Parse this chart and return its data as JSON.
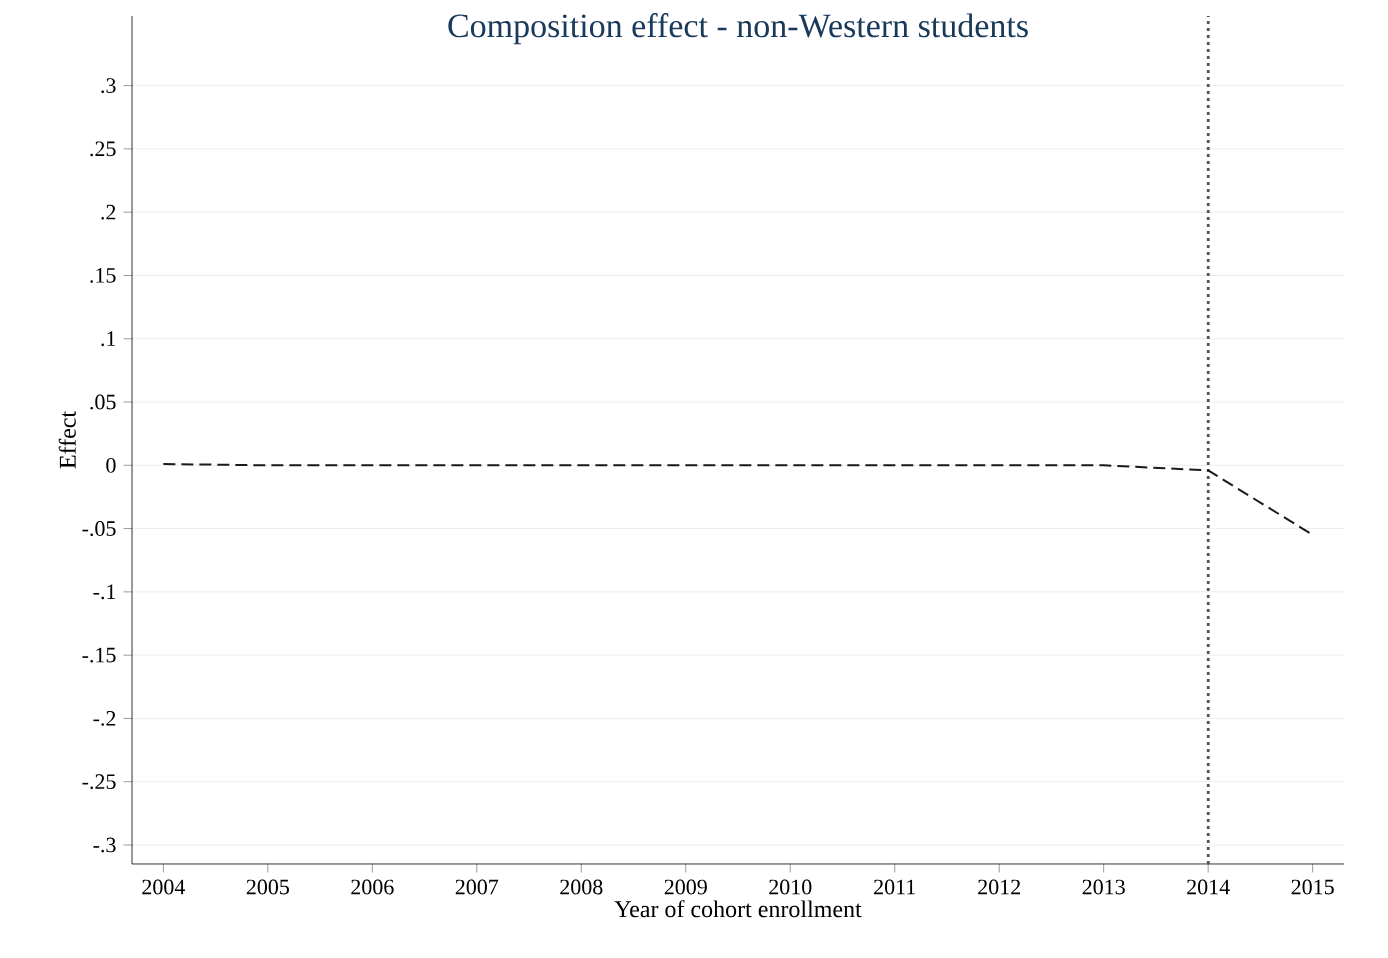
{
  "chart_data": {
    "type": "line",
    "title": "Composition effect - non-Western students",
    "xlabel": "Year of cohort enrollment",
    "ylabel": "Effect",
    "x": [
      2004,
      2005,
      2006,
      2007,
      2008,
      2009,
      2010,
      2011,
      2012,
      2013,
      2014,
      2015
    ],
    "series": [
      {
        "color": "#1a1a1a",
        "values": [
          0.001,
          0.0,
          0.0,
          0.0,
          0.0,
          0.0,
          0.0,
          0.0,
          0.0,
          0.0,
          -0.004,
          -0.055
        ]
      }
    ],
    "line_style": "dashed",
    "marker": "none",
    "grid": "y",
    "xlim": [
      2003.7,
      2015.3
    ],
    "ylim": [
      -0.315,
      0.355
    ],
    "xticks": [
      2004,
      2005,
      2006,
      2007,
      2008,
      2009,
      2010,
      2011,
      2012,
      2013,
      2014,
      2015
    ],
    "yticks": [
      {
        "value": 0.3,
        "label": ".3"
      },
      {
        "value": 0.25,
        "label": ".25"
      },
      {
        "value": 0.2,
        "label": ".2"
      },
      {
        "value": 0.15,
        "label": ".15"
      },
      {
        "value": 0.1,
        "label": ".1"
      },
      {
        "value": 0.05,
        "label": ".05"
      },
      0,
      {
        "value": -0.05,
        "label": "-.05"
      },
      {
        "value": -0.1,
        "label": "-.1"
      },
      {
        "value": -0.15,
        "label": "-.15"
      },
      {
        "value": -0.2,
        "label": "-.2"
      },
      {
        "value": -0.25,
        "label": "-.25"
      },
      {
        "value": -0.3,
        "label": "-.3"
      }
    ],
    "ref_lines": [
      {
        "axis": "x",
        "value": 2014,
        "color": "#555555",
        "line_style": "dotted"
      }
    ]
  }
}
